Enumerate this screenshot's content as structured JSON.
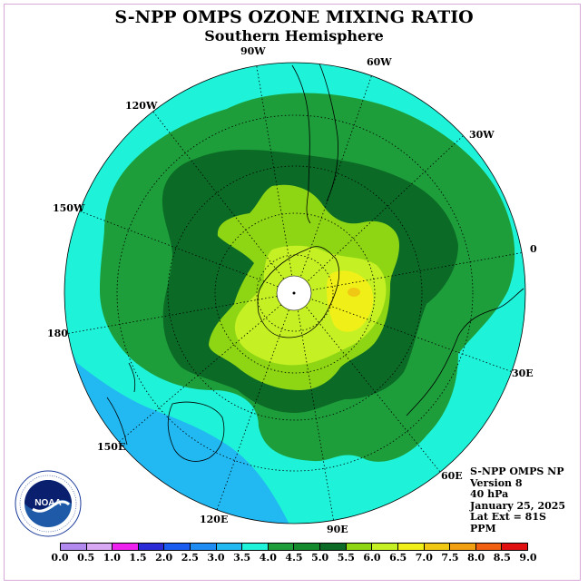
{
  "title": "S-NPP OMPS OZONE MIXING RATIO",
  "subtitle": "Southern Hemisphere",
  "longitude_labels": [
    "90W",
    "60W",
    "30W",
    "0",
    "30E",
    "60E",
    "90E",
    "120E",
    "150E",
    "180",
    "150W",
    "120W"
  ],
  "info": {
    "line1": "S-NPP OMPS NP",
    "line2": "Version 8",
    "line3": "40 hPa",
    "line4": "January 25, 2025",
    "line5": "Lat Ext = 81S",
    "line6": "PPM"
  },
  "logo": {
    "text": "NOAA",
    "ring_text": "NATIONAL OCEANIC AND ATMOSPHERIC ADMINISTRATION · U.S. DEPARTMENT OF COMMERCE"
  },
  "colorbar": {
    "labels": [
      "0.0",
      "0.5",
      "1.0",
      "1.5",
      "2.0",
      "2.5",
      "3.0",
      "3.5",
      "4.0",
      "4.5",
      "5.0",
      "5.5",
      "6.0",
      "6.5",
      "7.0",
      "7.5",
      "8.0",
      "8.5",
      "9.0"
    ],
    "colors": [
      "#b28aef",
      "#d9a8f5",
      "#ee22ee",
      "#2a2ad6",
      "#1a5cf0",
      "#1e8cf2",
      "#22b8f2",
      "#1ef2d8",
      "#1d9e3a",
      "#138a2e",
      "#0b6b26",
      "#8ed614",
      "#c4f024",
      "#f0f018",
      "#f0c814",
      "#f0a010",
      "#f06010",
      "#e01010",
      "#7a5030"
    ]
  },
  "chart_data": {
    "type": "map",
    "projection": "south polar stereographic",
    "quantity": "ozone mixing ratio",
    "units": "PPM",
    "pressure_level": "40 hPa",
    "date": "January 25, 2025",
    "data_min": 3.0,
    "data_max": 7.0,
    "pole_missing_data": true
  }
}
